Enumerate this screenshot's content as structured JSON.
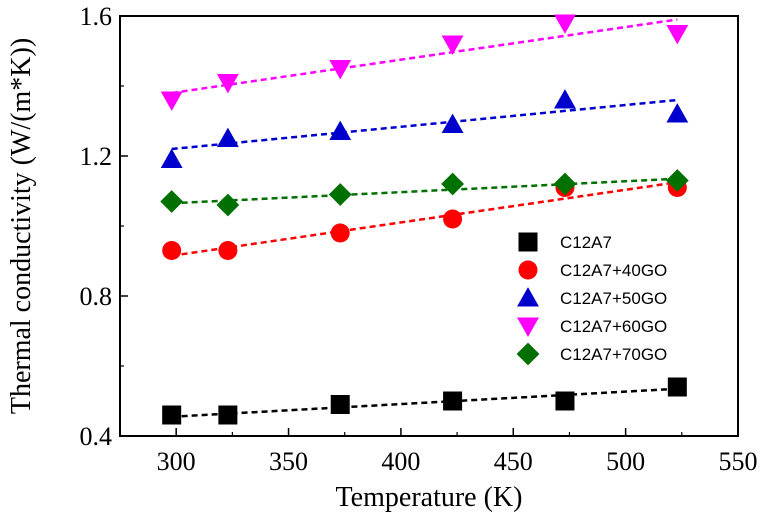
{
  "chart_data": {
    "type": "scatter",
    "title": "",
    "xlabel": "Temperature (K)",
    "ylabel": "Thermal conductivity (W/(m*K))",
    "xlim": [
      275,
      550
    ],
    "ylim": [
      0.4,
      1.6
    ],
    "xticks": [
      300,
      350,
      400,
      450,
      500,
      550
    ],
    "xtick_labels": [
      "300",
      "350",
      "400",
      "450",
      "500",
      "550"
    ],
    "yticks": [
      0.4,
      0.8,
      1.2,
      1.6
    ],
    "ytick_labels": [
      "0.4",
      "0.8",
      "1.2",
      "1.6"
    ],
    "legend_position": "center-right",
    "series": [
      {
        "name": "C12A7",
        "marker": "square",
        "color": "#000000",
        "x": [
          298,
          323,
          373,
          423,
          473,
          523
        ],
        "y": [
          0.46,
          0.46,
          0.49,
          0.5,
          0.5,
          0.54
        ],
        "fit": [
          [
            298,
            0.455
          ],
          [
            523,
            0.535
          ]
        ]
      },
      {
        "name": "C12A7+40GO",
        "marker": "circle",
        "color": "#ff0000",
        "x": [
          298,
          323,
          373,
          423,
          473,
          523
        ],
        "y": [
          0.93,
          0.93,
          0.98,
          1.02,
          1.11,
          1.11
        ],
        "fit": [
          [
            298,
            0.915
          ],
          [
            523,
            1.125
          ]
        ]
      },
      {
        "name": "C12A7+50GO",
        "marker": "triangle-up",
        "color": "#0000cc",
        "x": [
          298,
          323,
          373,
          423,
          473,
          523
        ],
        "y": [
          1.19,
          1.25,
          1.27,
          1.29,
          1.36,
          1.32
        ],
        "fit": [
          [
            298,
            1.22
          ],
          [
            523,
            1.36
          ]
        ]
      },
      {
        "name": "C12A7+60GO",
        "marker": "triangle-down",
        "color": "#ff00ff",
        "x": [
          298,
          323,
          373,
          423,
          473,
          523
        ],
        "y": [
          1.36,
          1.41,
          1.45,
          1.52,
          1.58,
          1.55
        ],
        "fit": [
          [
            298,
            1.38
          ],
          [
            523,
            1.59
          ]
        ]
      },
      {
        "name": "C12A7+70GO",
        "marker": "diamond",
        "color": "#007000",
        "x": [
          298,
          323,
          373,
          423,
          473,
          523
        ],
        "y": [
          1.07,
          1.06,
          1.09,
          1.12,
          1.12,
          1.13
        ],
        "fit": [
          [
            298,
            1.065
          ],
          [
            523,
            1.135
          ]
        ]
      }
    ]
  }
}
